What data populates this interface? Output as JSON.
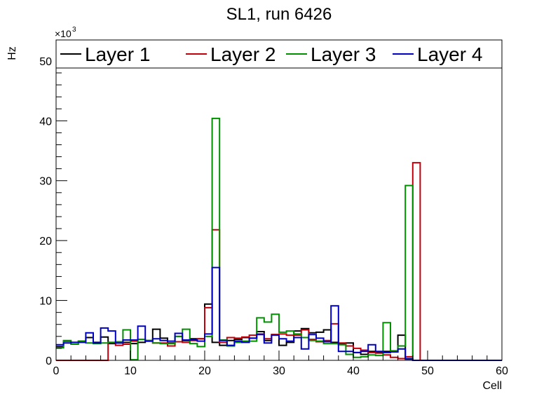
{
  "chart_data": {
    "type": "line",
    "style": "step-histogram",
    "title": "SL1, run 6426",
    "xlabel": "Cell",
    "ylabel": "Hz",
    "y_multiplier_prefix": "×10",
    "y_multiplier_exponent": "3",
    "xlim": [
      0,
      60
    ],
    "ylim": [
      0,
      53.5
    ],
    "x_ticks": [
      "0",
      "10",
      "20",
      "30",
      "40",
      "50",
      "60"
    ],
    "y_ticks": [
      "0",
      "10",
      "20",
      "30",
      "40",
      "50"
    ],
    "x_tick_values": [
      0,
      10,
      20,
      30,
      40,
      50,
      60
    ],
    "y_tick_values": [
      0,
      10,
      20,
      30,
      40,
      50
    ],
    "grid": false,
    "legend_position": "top",
    "bin_edges_start": 0,
    "bin_width": 1,
    "series": [
      {
        "name": "Layer 1",
        "color": "#000000",
        "values": [
          2.3,
          3.2,
          3.0,
          3.2,
          3.8,
          3.0,
          3.9,
          2.8,
          2.9,
          3.0,
          2.8,
          3.0,
          3.3,
          5.2,
          3.7,
          2.9,
          4.0,
          3.3,
          3.6,
          3.6,
          9.4,
          3.0,
          2.5,
          3.3,
          3.5,
          3.8,
          3.7,
          4.8,
          3.3,
          4.3,
          2.5,
          3.0,
          4.9,
          5.3,
          4.6,
          4.7,
          5.1,
          3.0,
          2.7,
          2.9,
          1.3,
          1.0,
          1.5,
          1.3,
          1.5,
          1.4,
          4.2,
          0.2,
          0,
          0,
          0,
          0,
          0,
          0,
          0,
          0,
          0,
          0,
          0,
          0
        ]
      },
      {
        "name": "Layer 2",
        "color": "#c0000a",
        "values": [
          0,
          0,
          0,
          0,
          0,
          0,
          0,
          3.0,
          2.5,
          2.7,
          3.2,
          3.5,
          3.2,
          2.9,
          2.9,
          2.4,
          3.1,
          3.0,
          3.3,
          3.6,
          8.8,
          21.8,
          3.0,
          3.8,
          3.7,
          3.9,
          4.2,
          4.4,
          3.6,
          4.3,
          4.4,
          4.2,
          4.2,
          5.1,
          3.5,
          3.1,
          3.3,
          6.1,
          2.9,
          2.4,
          2.0,
          1.7,
          1.3,
          1.2,
          0.9,
          0.5,
          0.3,
          0.6,
          33.0,
          0,
          0,
          0,
          0,
          0,
          0,
          0,
          0,
          0,
          0,
          0
        ]
      },
      {
        "name": "Layer 3",
        "color": "#009000",
        "values": [
          2.1,
          3.3,
          2.7,
          3.2,
          2.9,
          2.8,
          2.9,
          3.0,
          3.1,
          5.1,
          0.1,
          3.5,
          3.3,
          2.9,
          2.8,
          2.8,
          4.0,
          5.2,
          2.8,
          2.3,
          4.0,
          40.4,
          3.4,
          2.4,
          3.0,
          3.2,
          3.2,
          7.1,
          6.4,
          7.7,
          4.7,
          4.9,
          4.4,
          3.8,
          3.3,
          3.2,
          2.8,
          2.8,
          2.6,
          1.0,
          0.5,
          0.6,
          0.9,
          0.8,
          6.3,
          1.6,
          2.4,
          29.2,
          0,
          0,
          0,
          0,
          0,
          0,
          0,
          0,
          0,
          0,
          0,
          0
        ]
      },
      {
        "name": "Layer 4",
        "color": "#0000c0",
        "values": [
          2.6,
          2.9,
          3.0,
          3.0,
          4.6,
          2.9,
          5.4,
          4.9,
          2.9,
          3.4,
          3.4,
          5.7,
          3.2,
          3.6,
          3.3,
          3.2,
          4.5,
          3.4,
          3.4,
          3.2,
          4.4,
          15.5,
          3.3,
          2.5,
          3.2,
          3.0,
          3.7,
          4.3,
          2.9,
          4.2,
          3.6,
          3.2,
          3.8,
          1.9,
          4.3,
          3.7,
          3.1,
          9.1,
          1.5,
          1.5,
          1.3,
          1.5,
          2.6,
          1.5,
          1.3,
          1.4,
          1.9,
          0.3,
          0,
          0,
          0,
          0,
          0,
          0,
          0,
          0,
          0,
          0,
          0,
          0
        ]
      }
    ]
  }
}
